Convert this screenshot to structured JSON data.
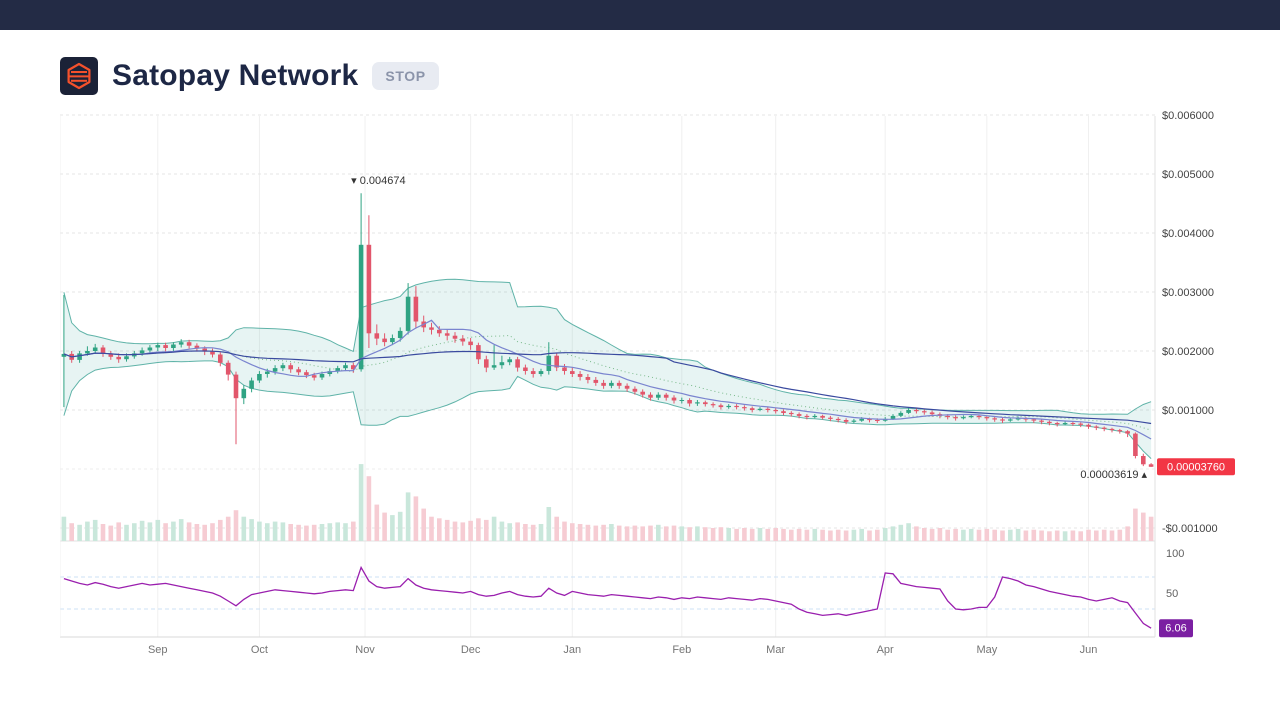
{
  "theme": {
    "topbar": "#232b45",
    "title": "#1d2745",
    "logo_bg": "#1b2237",
    "logo_accent": "#f4512c",
    "badge_bg": "#e8ebf2",
    "badge_text": "#8b94aa",
    "page_bg": "#ffffff"
  },
  "header": {
    "title": "Satopay Network",
    "ticker": "STOP"
  },
  "chart_data": {
    "type": "candlestick",
    "price_scale": 1e-05,
    "last_price": "0.00003760",
    "rsi_last": "6.06",
    "y_axis": [
      {
        "label": "$0.006000",
        "value": 0.006
      },
      {
        "label": "$0.005000",
        "value": 0.005
      },
      {
        "label": "$0.004000",
        "value": 0.004
      },
      {
        "label": "$0.003000",
        "value": 0.003
      },
      {
        "label": "$0.002000",
        "value": 0.002
      },
      {
        "label": "$0.001000",
        "value": 0.001
      },
      {
        "label": "-$0.001000",
        "value": -0.001
      }
    ],
    "rsi_axis": [
      {
        "label": "100",
        "value": 100
      },
      {
        "label": "50",
        "value": 50
      }
    ],
    "rsi_guides": [
      70,
      30
    ],
    "x_axis": [
      {
        "label": "Sep",
        "idx": 12
      },
      {
        "label": "Oct",
        "idx": 25
      },
      {
        "label": "Nov",
        "idx": 38.5
      },
      {
        "label": "Dec",
        "idx": 52
      },
      {
        "label": "Jan",
        "idx": 65
      },
      {
        "label": "Feb",
        "idx": 79
      },
      {
        "label": "Mar",
        "idx": 91
      },
      {
        "label": "Apr",
        "idx": 105
      },
      {
        "label": "May",
        "idx": 118
      },
      {
        "label": "Jun",
        "idx": 131
      }
    ],
    "annotations": {
      "high": {
        "marker": "▾",
        "text": "0.004674",
        "bar": 38
      },
      "low": {
        "marker": "▴",
        "text": "0.00003619",
        "bar": 139
      }
    },
    "colors": {
      "up": "#2fa383",
      "down": "#e2566b",
      "vol_up": "#c9e7db",
      "vol_down": "#f6ccd3",
      "bb_fill": "rgba(70,170,160,0.13)",
      "bb_line": "#5fb3a8",
      "bb_mid": "#79b98a",
      "ma_fast": "#7a84cf",
      "ma_slow": "#3a4a9f",
      "rsi": "#9a1fae",
      "rsi_badge": "#7b1fa2",
      "price_badge": "#f23645",
      "grid": "#e4e4e4",
      "grid_v": "#f0f0f0",
      "rsi_guide": "#cde2f5",
      "axis_text": "#424242",
      "month_text": "#757575",
      "annotation_text": "#333333"
    },
    "bars": [
      [
        190,
        295,
        105,
        195,
        30
      ],
      [
        195,
        200,
        180,
        185,
        22
      ],
      [
        185,
        200,
        180,
        196,
        20
      ],
      [
        196,
        208,
        192,
        200,
        24
      ],
      [
        200,
        212,
        196,
        206,
        26
      ],
      [
        206,
        210,
        190,
        195,
        21
      ],
      [
        195,
        200,
        185,
        190,
        19
      ],
      [
        190,
        196,
        180,
        186,
        23
      ],
      [
        186,
        196,
        182,
        191,
        20
      ],
      [
        191,
        200,
        187,
        196,
        22
      ],
      [
        196,
        206,
        192,
        201,
        25
      ],
      [
        201,
        210,
        197,
        206,
        23
      ],
      [
        206,
        214,
        200,
        210,
        26
      ],
      [
        210,
        214,
        198,
        205,
        22
      ],
      [
        205,
        215,
        200,
        211,
        24
      ],
      [
        211,
        220,
        206,
        215,
        27
      ],
      [
        215,
        219,
        204,
        209,
        23
      ],
      [
        209,
        213,
        199,
        204,
        21
      ],
      [
        204,
        208,
        193,
        199,
        20
      ],
      [
        199,
        204,
        189,
        194,
        22
      ],
      [
        194,
        198,
        174,
        180,
        26
      ],
      [
        180,
        184,
        150,
        160,
        30
      ],
      [
        160,
        165,
        42,
        120,
        38
      ],
      [
        120,
        142,
        110,
        136,
        30
      ],
      [
        136,
        155,
        130,
        150,
        27
      ],
      [
        150,
        166,
        146,
        161,
        24
      ],
      [
        161,
        170,
        155,
        165,
        22
      ],
      [
        165,
        176,
        160,
        171,
        24
      ],
      [
        171,
        180,
        166,
        176,
        23
      ],
      [
        176,
        180,
        163,
        169,
        21
      ],
      [
        169,
        173,
        159,
        164,
        20
      ],
      [
        164,
        168,
        154,
        159,
        19
      ],
      [
        159,
        163,
        150,
        155,
        20
      ],
      [
        155,
        165,
        151,
        161,
        21
      ],
      [
        161,
        170,
        157,
        166,
        22
      ],
      [
        166,
        175,
        162,
        171,
        23
      ],
      [
        171,
        180,
        167,
        176,
        22
      ],
      [
        176,
        180,
        163,
        169,
        24
      ],
      [
        169,
        467.4,
        165,
        380,
        95
      ],
      [
        380,
        430,
        205,
        230,
        80
      ],
      [
        230,
        245,
        210,
        221,
        45
      ],
      [
        221,
        230,
        208,
        215,
        35
      ],
      [
        215,
        228,
        210,
        222,
        32
      ],
      [
        222,
        240,
        216,
        234,
        36
      ],
      [
        234,
        315,
        228,
        292,
        60
      ],
      [
        292,
        310,
        238,
        250,
        55
      ],
      [
        250,
        260,
        232,
        240,
        40
      ],
      [
        240,
        248,
        228,
        236,
        30
      ],
      [
        236,
        242,
        224,
        230,
        28
      ],
      [
        230,
        236,
        218,
        226,
        26
      ],
      [
        226,
        232,
        214,
        221,
        24
      ],
      [
        221,
        227,
        209,
        216,
        23
      ],
      [
        216,
        222,
        202,
        210,
        25
      ],
      [
        210,
        214,
        178,
        186,
        28
      ],
      [
        186,
        192,
        164,
        172,
        26
      ],
      [
        172,
        210,
        168,
        176,
        30
      ],
      [
        176,
        192,
        170,
        181,
        24
      ],
      [
        181,
        190,
        176,
        186,
        22
      ],
      [
        186,
        190,
        165,
        172,
        23
      ],
      [
        172,
        177,
        160,
        166,
        21
      ],
      [
        166,
        171,
        155,
        161,
        20
      ],
      [
        161,
        170,
        157,
        166,
        21
      ],
      [
        166,
        215,
        160,
        192,
        42
      ],
      [
        192,
        196,
        166,
        172,
        30
      ],
      [
        172,
        178,
        160,
        166,
        24
      ],
      [
        166,
        172,
        156,
        161,
        22
      ],
      [
        161,
        166,
        150,
        156,
        21
      ],
      [
        156,
        161,
        145,
        151,
        20
      ],
      [
        151,
        156,
        141,
        146,
        19
      ],
      [
        146,
        151,
        136,
        141,
        20
      ],
      [
        141,
        150,
        137,
        146,
        21
      ],
      [
        146,
        150,
        136,
        141,
        19
      ],
      [
        141,
        145,
        131,
        136,
        18
      ],
      [
        136,
        140,
        126,
        131,
        19
      ],
      [
        131,
        135,
        121,
        126,
        18
      ],
      [
        126,
        130,
        116,
        121,
        19
      ],
      [
        121,
        130,
        117,
        126,
        20
      ],
      [
        126,
        129,
        116,
        121,
        18
      ],
      [
        121,
        125,
        111,
        116,
        19
      ],
      [
        116,
        121,
        111,
        117,
        18
      ],
      [
        117,
        120,
        106,
        111,
        17
      ],
      [
        111,
        117,
        107,
        113,
        18
      ],
      [
        113,
        116,
        106,
        110,
        17
      ],
      [
        110,
        113,
        104,
        108,
        16
      ],
      [
        108,
        111,
        101,
        105,
        17
      ],
      [
        105,
        110,
        102,
        107,
        16
      ],
      [
        107,
        110,
        101,
        105,
        15
      ],
      [
        105,
        108,
        99,
        103,
        16
      ],
      [
        103,
        106,
        96,
        100,
        15
      ],
      [
        100,
        105,
        98,
        102,
        16
      ],
      [
        102,
        105,
        96,
        100,
        15
      ],
      [
        100,
        103,
        94,
        98,
        16
      ],
      [
        98,
        101,
        91,
        95,
        15
      ],
      [
        95,
        98,
        89,
        93,
        14
      ],
      [
        93,
        96,
        86,
        90,
        15
      ],
      [
        90,
        93,
        84,
        88,
        14
      ],
      [
        88,
        93,
        86,
        90,
        15
      ],
      [
        90,
        92,
        84,
        87,
        14
      ],
      [
        87,
        90,
        81,
        85,
        13
      ],
      [
        85,
        88,
        79,
        83,
        14
      ],
      [
        83,
        86,
        76,
        80,
        13
      ],
      [
        80,
        85,
        78,
        82,
        14
      ],
      [
        82,
        88,
        80,
        85,
        15
      ],
      [
        85,
        87,
        79,
        83,
        13
      ],
      [
        83,
        86,
        78,
        82,
        14
      ],
      [
        82,
        88,
        80,
        85,
        16
      ],
      [
        85,
        93,
        83,
        90,
        18
      ],
      [
        90,
        98,
        88,
        95,
        20
      ],
      [
        95,
        104,
        93,
        100,
        22
      ],
      [
        100,
        103,
        94,
        98,
        18
      ],
      [
        98,
        101,
        92,
        96,
        16
      ],
      [
        96,
        99,
        89,
        93,
        15
      ],
      [
        93,
        96,
        86,
        90,
        16
      ],
      [
        90,
        93,
        84,
        88,
        14
      ],
      [
        88,
        91,
        82,
        86,
        15
      ],
      [
        86,
        91,
        84,
        88,
        14
      ],
      [
        88,
        93,
        86,
        90,
        15
      ],
      [
        90,
        92,
        84,
        88,
        14
      ],
      [
        88,
        90,
        82,
        86,
        15
      ],
      [
        86,
        89,
        80,
        84,
        14
      ],
      [
        84,
        87,
        78,
        82,
        13
      ],
      [
        82,
        87,
        80,
        84,
        14
      ],
      [
        84,
        89,
        82,
        86,
        15
      ],
      [
        86,
        88,
        80,
        84,
        13
      ],
      [
        84,
        86,
        78,
        82,
        14
      ],
      [
        82,
        84,
        76,
        80,
        13
      ],
      [
        80,
        82,
        74,
        78,
        12
      ],
      [
        78,
        80,
        72,
        76,
        13
      ],
      [
        76,
        81,
        74,
        78,
        12
      ],
      [
        78,
        80,
        73,
        77,
        13
      ],
      [
        77,
        79,
        71,
        75,
        12
      ],
      [
        75,
        77,
        68,
        72,
        14
      ],
      [
        72,
        74,
        66,
        70,
        13
      ],
      [
        70,
        72,
        64,
        68,
        14
      ],
      [
        68,
        70,
        62,
        66,
        13
      ],
      [
        66,
        68,
        60,
        64,
        14
      ],
      [
        64,
        66,
        54,
        60,
        18
      ],
      [
        60,
        62,
        18,
        22,
        40
      ],
      [
        22,
        26,
        5,
        8,
        35
      ],
      [
        8,
        10,
        3.62,
        3.76,
        30
      ]
    ],
    "rsi": [
      68,
      65,
      62,
      60,
      63,
      61,
      58,
      56,
      58,
      60,
      62,
      60,
      61,
      62,
      60,
      58,
      56,
      54,
      52,
      50,
      46,
      40,
      34,
      42,
      48,
      50,
      52,
      54,
      53,
      52,
      51,
      50,
      49,
      50,
      52,
      53,
      54,
      53,
      82,
      65,
      58,
      56,
      57,
      58,
      68,
      60,
      56,
      54,
      53,
      52,
      51,
      50,
      52,
      48,
      46,
      47,
      50,
      52,
      48,
      46,
      45,
      46,
      56,
      50,
      47,
      52,
      50,
      48,
      47,
      46,
      48,
      47,
      46,
      45,
      44,
      43,
      45,
      44,
      42,
      44,
      43,
      45,
      44,
      43,
      42,
      44,
      43,
      42,
      41,
      43,
      42,
      40,
      38,
      36,
      30,
      26,
      24,
      22,
      23,
      24,
      22,
      24,
      26,
      28,
      30,
      75,
      74,
      62,
      60,
      58,
      57,
      56,
      55,
      40,
      30,
      29,
      30,
      32,
      32,
      45,
      70,
      68,
      65,
      60,
      58,
      55,
      52,
      50,
      48,
      46,
      45,
      42,
      40,
      42,
      44,
      40,
      38,
      25,
      12,
      6.06
    ]
  }
}
